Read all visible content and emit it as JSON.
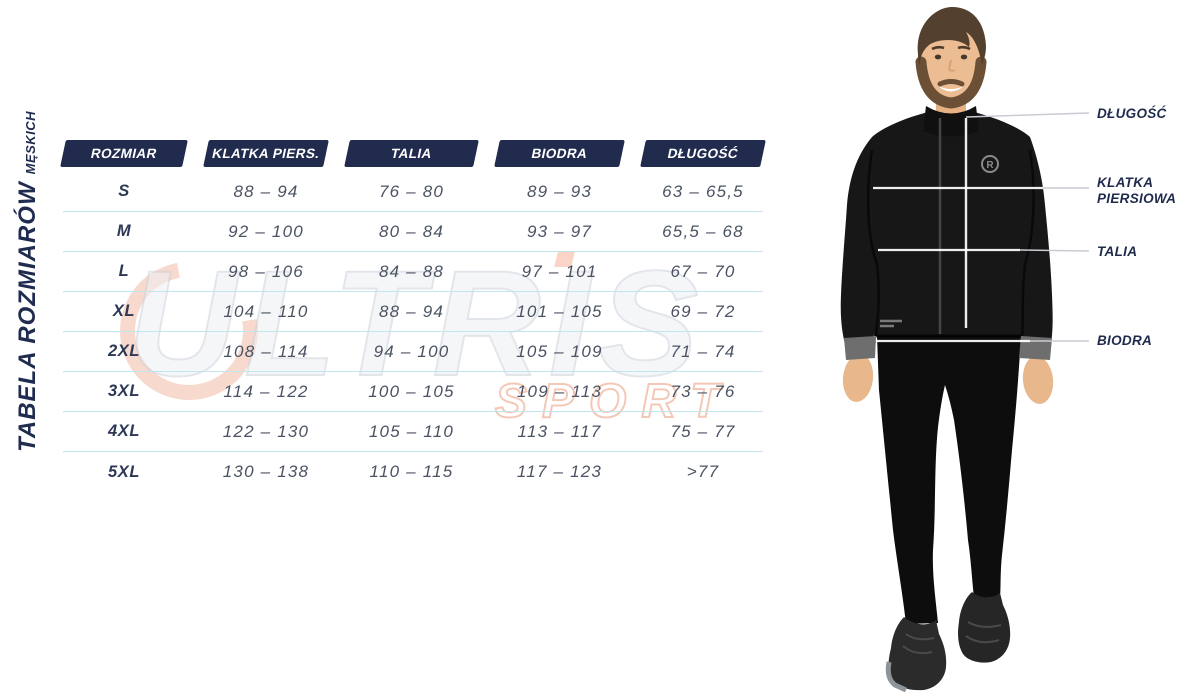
{
  "page": {
    "vertical_title": "TABELA ROZMIARÓW",
    "vertical_title_sub": "MĘSKICH"
  },
  "watermark": {
    "line1": "ULTRIS",
    "line2": "SPORT"
  },
  "size_table": {
    "columns": [
      "ROZMIAR",
      "KLATKA PIERS.",
      "TALIA",
      "BIODRA",
      "DŁUGOŚĆ"
    ],
    "rows": [
      {
        "size": "S",
        "values": [
          "88 – 94",
          "76 – 80",
          "89 – 93",
          "63 – 65,5"
        ]
      },
      {
        "size": "M",
        "values": [
          "92 – 100",
          "80 – 84",
          "93 – 97",
          "65,5 – 68"
        ]
      },
      {
        "size": "L",
        "values": [
          "98 – 106",
          "84 – 88",
          "97 – 101",
          "67 – 70"
        ]
      },
      {
        "size": "XL",
        "values": [
          "104 – 110",
          "88 – 94",
          "101 – 105",
          "69 – 72"
        ]
      },
      {
        "size": "2XL",
        "values": [
          "108 – 114",
          "94 – 100",
          "105 – 109",
          "71 – 74"
        ]
      },
      {
        "size": "3XL",
        "values": [
          "114 – 122",
          "100 – 105",
          "109 – 113",
          "73 – 76"
        ]
      },
      {
        "size": "4XL",
        "values": [
          "122 – 130",
          "105 – 110",
          "113 – 117",
          "75 – 77"
        ]
      },
      {
        "size": "5XL",
        "values": [
          "130 – 138",
          "110 – 115",
          "117 – 123",
          ">77"
        ]
      }
    ]
  },
  "figure": {
    "length_label": "DŁUGOŚĆ",
    "chest_label_line1": "KLATKA",
    "chest_label_line2": "PIERSIOWA",
    "waist_label": "TALIA",
    "hips_label": "BIODRA"
  },
  "chart_data": {
    "type": "table",
    "title": "TABELA ROZMIARÓW MĘSKICH",
    "columns": [
      "ROZMIAR",
      "KLATKA PIERS.",
      "TALIA",
      "BIODRA",
      "DŁUGOŚĆ"
    ],
    "rows": [
      [
        "S",
        "88 – 94",
        "76 – 80",
        "89 – 93",
        "63 – 65,5"
      ],
      [
        "M",
        "92 – 100",
        "80 – 84",
        "93 – 97",
        "65,5 – 68"
      ],
      [
        "L",
        "98 – 106",
        "84 – 88",
        "97 – 101",
        "67 – 70"
      ],
      [
        "XL",
        "104 – 110",
        "88 – 94",
        "101 – 105",
        "69 – 72"
      ],
      [
        "2XL",
        "108 – 114",
        "94 – 100",
        "105 – 109",
        "71 – 74"
      ],
      [
        "3XL",
        "114 – 122",
        "100 – 105",
        "109 – 113",
        "73 – 76"
      ],
      [
        "4XL",
        "122 – 130",
        "105 – 110",
        "113 – 117",
        "75 – 77"
      ],
      [
        "5XL",
        "130 – 138",
        "110 – 115",
        "117 – 123",
        ">77"
      ]
    ]
  },
  "colors": {
    "header_navy": "#202b4e",
    "data_text": "#4b5363",
    "separator": "#c2e5ee",
    "label_navy": "#1f2b4c",
    "watermark_grey": "#ccd2da",
    "watermark_orange": "#e89372"
  }
}
